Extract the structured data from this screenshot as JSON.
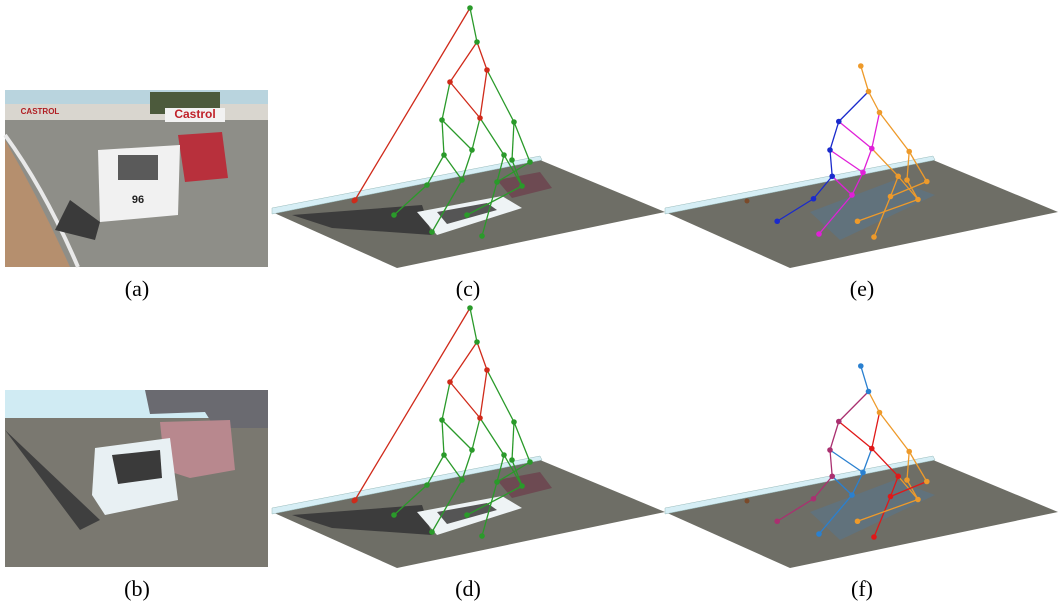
{
  "panels": [
    {
      "label": "(a)"
    },
    {
      "label": "(b)"
    },
    {
      "label": "(c)"
    },
    {
      "label": "(d)"
    },
    {
      "label": "(e)"
    },
    {
      "label": "(f)"
    }
  ],
  "photo_text": {
    "banner": "CASTROL",
    "sign": "Castrol",
    "car_number": "96"
  }
}
